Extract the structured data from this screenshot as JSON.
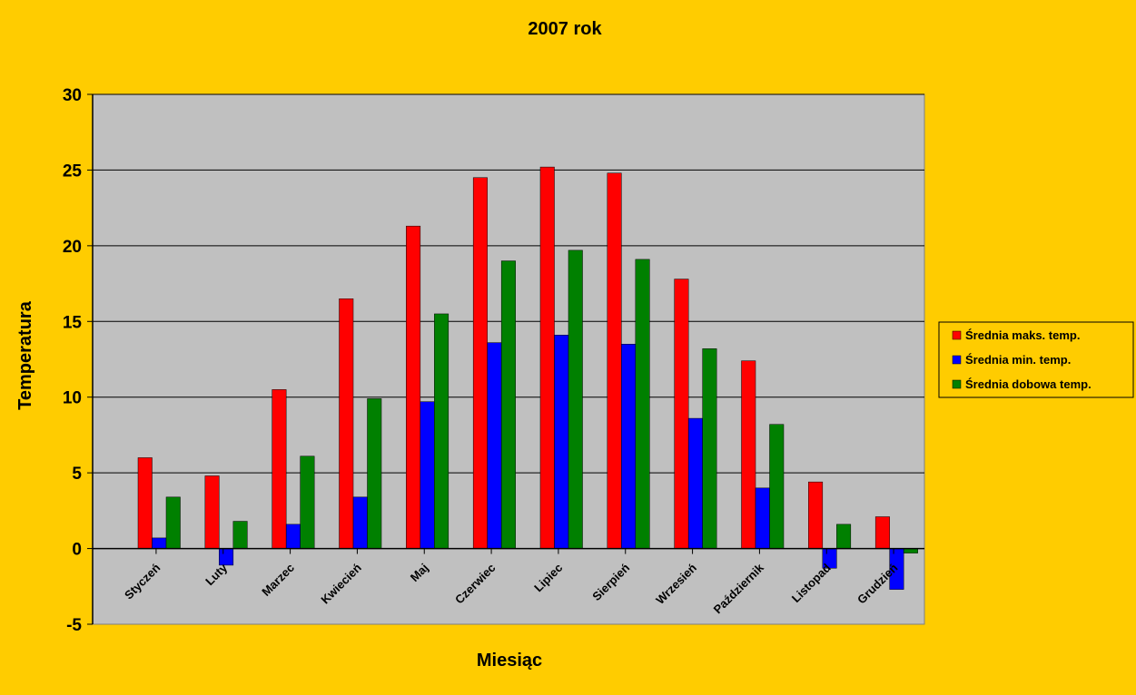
{
  "chart_data": {
    "type": "bar",
    "title": "2007 rok",
    "xlabel": "Miesiąc",
    "ylabel": "Temperatura",
    "ylim": [
      -5,
      30
    ],
    "yticks": [
      -5,
      0,
      5,
      10,
      15,
      20,
      25,
      30
    ],
    "grid": true,
    "legend_position": "right",
    "categories": [
      "Styczeń",
      "Luty",
      "Marzec",
      "Kwiecień",
      "Maj",
      "Czerwiec",
      "Lipiec",
      "Sierpień",
      "Wrzesień",
      "Październik",
      "Listopad",
      "Grudzień"
    ],
    "series": [
      {
        "name": "Średnia maks. temp.",
        "color": "#FF0000",
        "values": [
          6.0,
          4.8,
          10.5,
          16.5,
          21.3,
          24.5,
          25.2,
          24.8,
          17.8,
          12.4,
          4.4,
          2.1
        ]
      },
      {
        "name": "Średnia min. temp.",
        "color": "#0000FF",
        "values": [
          0.7,
          -1.1,
          1.6,
          3.4,
          9.7,
          13.6,
          14.1,
          13.5,
          8.6,
          4.0,
          -1.3,
          -2.7
        ]
      },
      {
        "name": "Średnia dobowa temp.",
        "color": "#008000",
        "values": [
          3.4,
          1.8,
          6.1,
          9.9,
          15.5,
          19.0,
          19.7,
          19.1,
          13.2,
          8.2,
          1.6,
          -0.3
        ]
      }
    ],
    "colors": {
      "background": "#FFCC00",
      "plot_area": "#C0C0C0",
      "grid": "#000000"
    }
  }
}
